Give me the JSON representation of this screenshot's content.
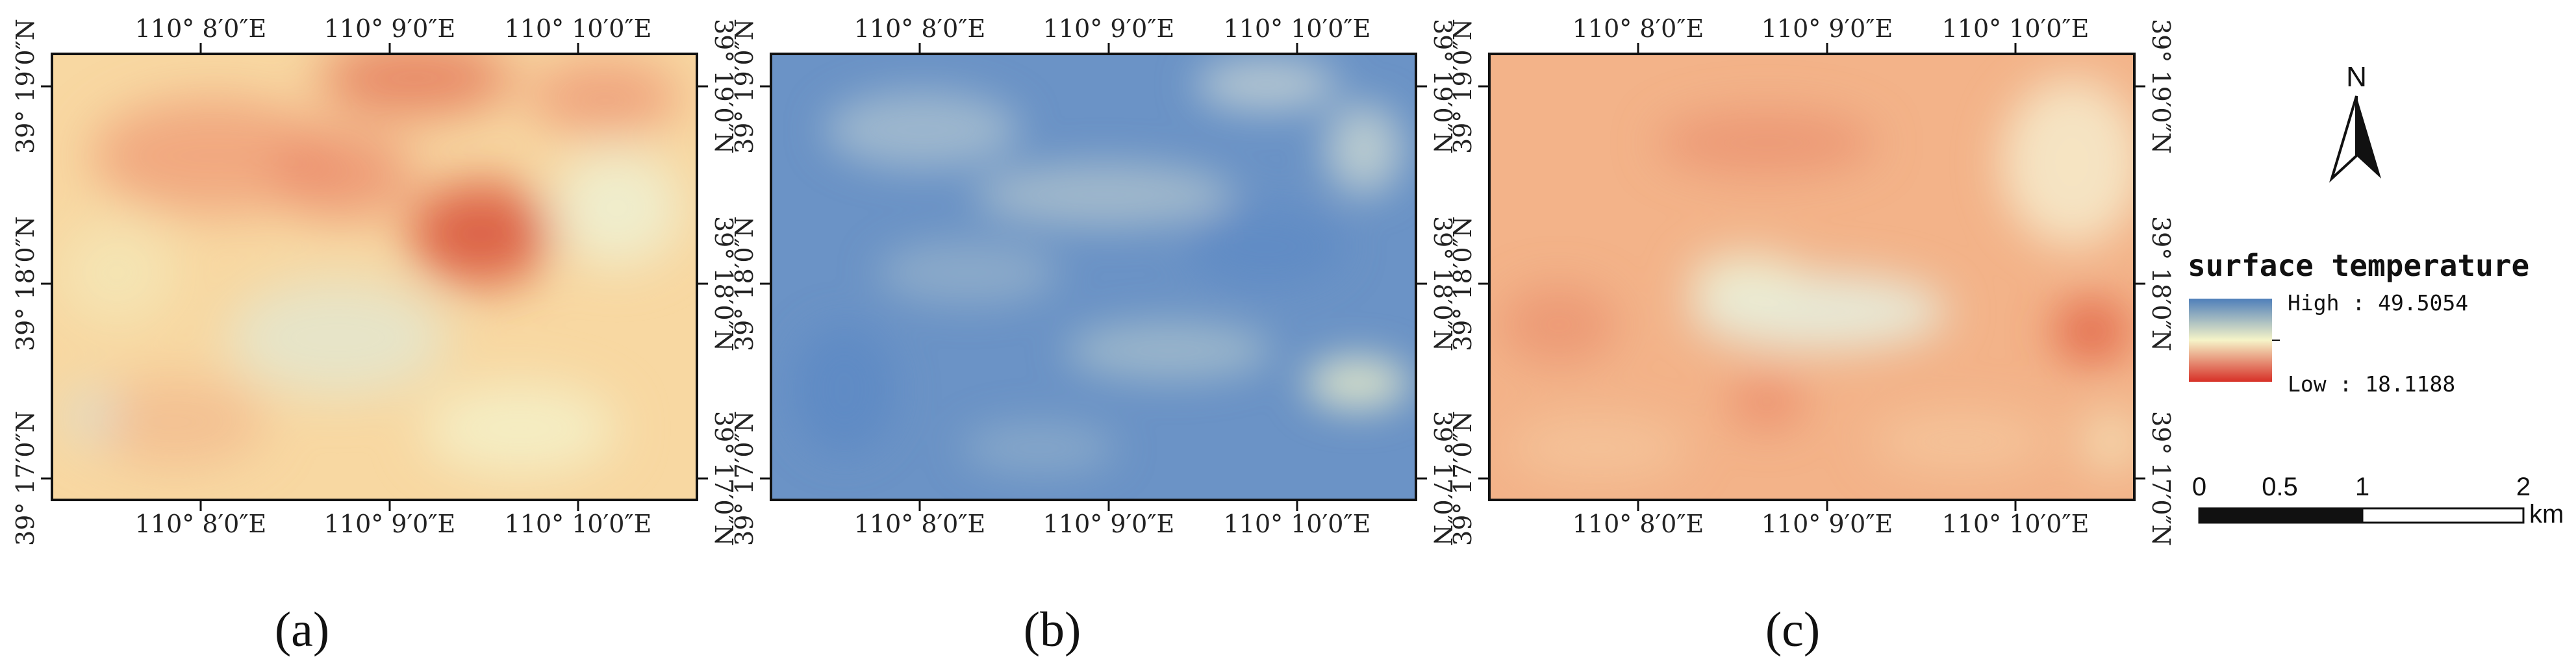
{
  "colors": {
    "high": "#4f7fba",
    "mid": "#f6f4c8",
    "low": "#d73027",
    "frame": "#111111",
    "panel_a_base": "#f8d8a2",
    "panel_b_base": "#6b93c6",
    "panel_c_base": "#f3b389"
  },
  "panels": [
    {
      "caption": "(a)",
      "top_lon_labels": [
        "110° 8′0″E",
        "110° 9′0″E",
        "110° 10′0″E"
      ],
      "bottom_lon_labels": [
        "110° 8′0″E",
        "110° 9′0″E",
        "110° 10′0″E"
      ],
      "left_lat_labels": [
        "39° 19′0″N",
        "39° 18′0″N",
        "39° 17′0″N"
      ],
      "right_lat_labels": [
        "39° 19′0″N",
        "39° 18′0″N",
        "39° 17′0″N"
      ]
    },
    {
      "caption": "(b)",
      "top_lon_labels": [
        "110° 8′0″E",
        "110° 9′0″E",
        "110° 10′0″E"
      ],
      "bottom_lon_labels": [
        "110° 8′0″E",
        "110° 9′0″E",
        "110° 10′0″E"
      ],
      "left_lat_labels": [
        "39° 19′0″N",
        "39° 18′0″N",
        "39° 17′0″N"
      ],
      "right_lat_labels": [
        "39° 19′0″N",
        "39° 18′0″N",
        "39° 17′0″N"
      ]
    },
    {
      "caption": "(c)",
      "top_lon_labels": [
        "110° 8′0″E",
        "110° 9′0″E",
        "110° 10′0″E"
      ],
      "bottom_lon_labels": [
        "110° 8′0″E",
        "110° 9′0″E",
        "110° 10′0″E"
      ],
      "left_lat_labels": [
        "39° 19′0″N",
        "39° 18′0″N",
        "39° 17′0″N"
      ],
      "right_lat_labels": [
        "39° 19′0″N",
        "39° 18′0″N",
        "39° 17′0″N"
      ]
    }
  ],
  "legend": {
    "title": "surface temperature",
    "high_label": "High : 49.5054",
    "low_label": "Low : 18.1188"
  },
  "north_arrow": {
    "label": "N",
    "icon": "north-arrow-icon"
  },
  "scale_bar": {
    "tick_labels": [
      "0",
      "0.5",
      "1",
      "2"
    ],
    "unit": "km"
  }
}
